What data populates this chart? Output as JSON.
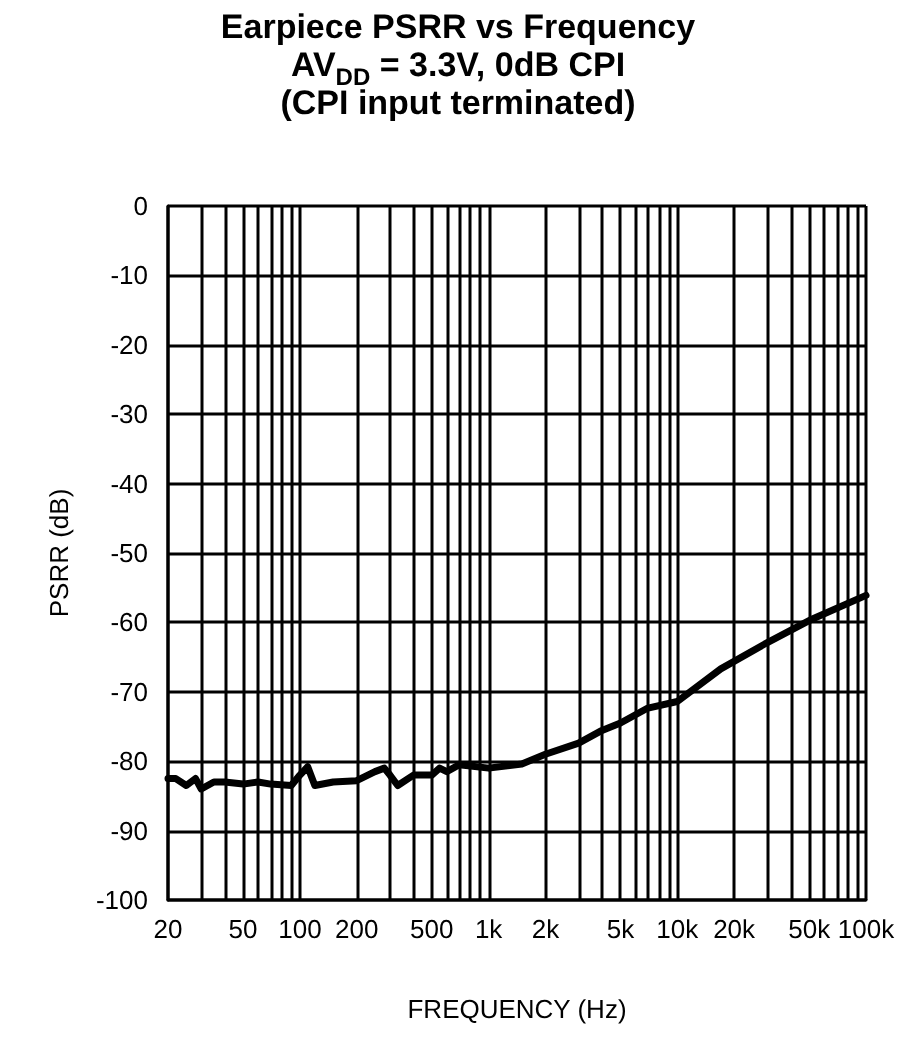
{
  "chart_data": {
    "type": "line",
    "title": "Earpiece PSRR vs Frequency",
    "subtitle": "AV$_{DD}$ = 3.3V, 0dB CPI\n(CPI input terminated)",
    "xlabel": "FREQUENCY (Hz)",
    "ylabel": "PSRR (dB)",
    "log": "x",
    "grid": true,
    "marker": "none",
    "line_style": "solid",
    "xlim": [
      20,
      100000
    ],
    "xticks": [
      {
        "value": 20,
        "label": "20"
      },
      {
        "value": 30,
        "label": null
      },
      {
        "value": 40,
        "label": null
      },
      {
        "value": 50,
        "label": "50"
      },
      {
        "value": 60,
        "label": null
      },
      {
        "value": 70,
        "label": null
      },
      {
        "value": 80,
        "label": null
      },
      {
        "value": 90,
        "label": null
      },
      {
        "value": 100,
        "label": "100"
      },
      {
        "value": 200,
        "label": "200"
      },
      {
        "value": 300,
        "label": null
      },
      {
        "value": 400,
        "label": null
      },
      {
        "value": 500,
        "label": "500"
      },
      {
        "value": 600,
        "label": null
      },
      {
        "value": 700,
        "label": null
      },
      {
        "value": 800,
        "label": null
      },
      {
        "value": 900,
        "label": null
      },
      {
        "value": 1000,
        "label": "1k"
      },
      {
        "value": 2000,
        "label": "2k"
      },
      {
        "value": 3000,
        "label": null
      },
      {
        "value": 4000,
        "label": null
      },
      {
        "value": 5000,
        "label": "5k"
      },
      {
        "value": 6000,
        "label": null
      },
      {
        "value": 7000,
        "label": null
      },
      {
        "value": 8000,
        "label": null
      },
      {
        "value": 9000,
        "label": null
      },
      {
        "value": 10000,
        "label": "10k"
      },
      {
        "value": 20000,
        "label": "20k"
      },
      {
        "value": 30000,
        "label": null
      },
      {
        "value": 40000,
        "label": null
      },
      {
        "value": 50000,
        "label": "50k"
      },
      {
        "value": 60000,
        "label": null
      },
      {
        "value": 70000,
        "label": null
      },
      {
        "value": 80000,
        "label": null
      },
      {
        "value": 90000,
        "label": null
      },
      {
        "value": 100000,
        "label": "100k"
      }
    ],
    "ylim": [
      -100,
      0
    ],
    "yticks": [
      -100,
      -90,
      -80,
      -70,
      -60,
      -50,
      -40,
      -30,
      -20,
      -10,
      0
    ],
    "series": [
      {
        "color": "#000000",
        "x": [
          20,
          22,
          25,
          28,
          30,
          35,
          40,
          50,
          60,
          70,
          90,
          100,
          110,
          120,
          150,
          200,
          250,
          280,
          300,
          330,
          400,
          500,
          550,
          600,
          700,
          1000,
          1500,
          2000,
          3000,
          3900,
          5000,
          6900,
          10000,
          17000,
          30000,
          52000,
          100000
        ],
        "values": [
          -82.5,
          -82.5,
          -83.5,
          -82.5,
          -84,
          -83,
          -83,
          -83.3,
          -83,
          -83.3,
          -83.5,
          -82,
          -80.8,
          -83.5,
          -83,
          -82.8,
          -81.5,
          -81,
          -82,
          -83.5,
          -82,
          -82,
          -81,
          -81.5,
          -80.5,
          -81,
          -80.4,
          -79,
          -77.4,
          -75.7,
          -74.5,
          -72.4,
          -71.4,
          -66.7,
          -62.9,
          -59.5,
          -56.1
        ]
      }
    ]
  }
}
